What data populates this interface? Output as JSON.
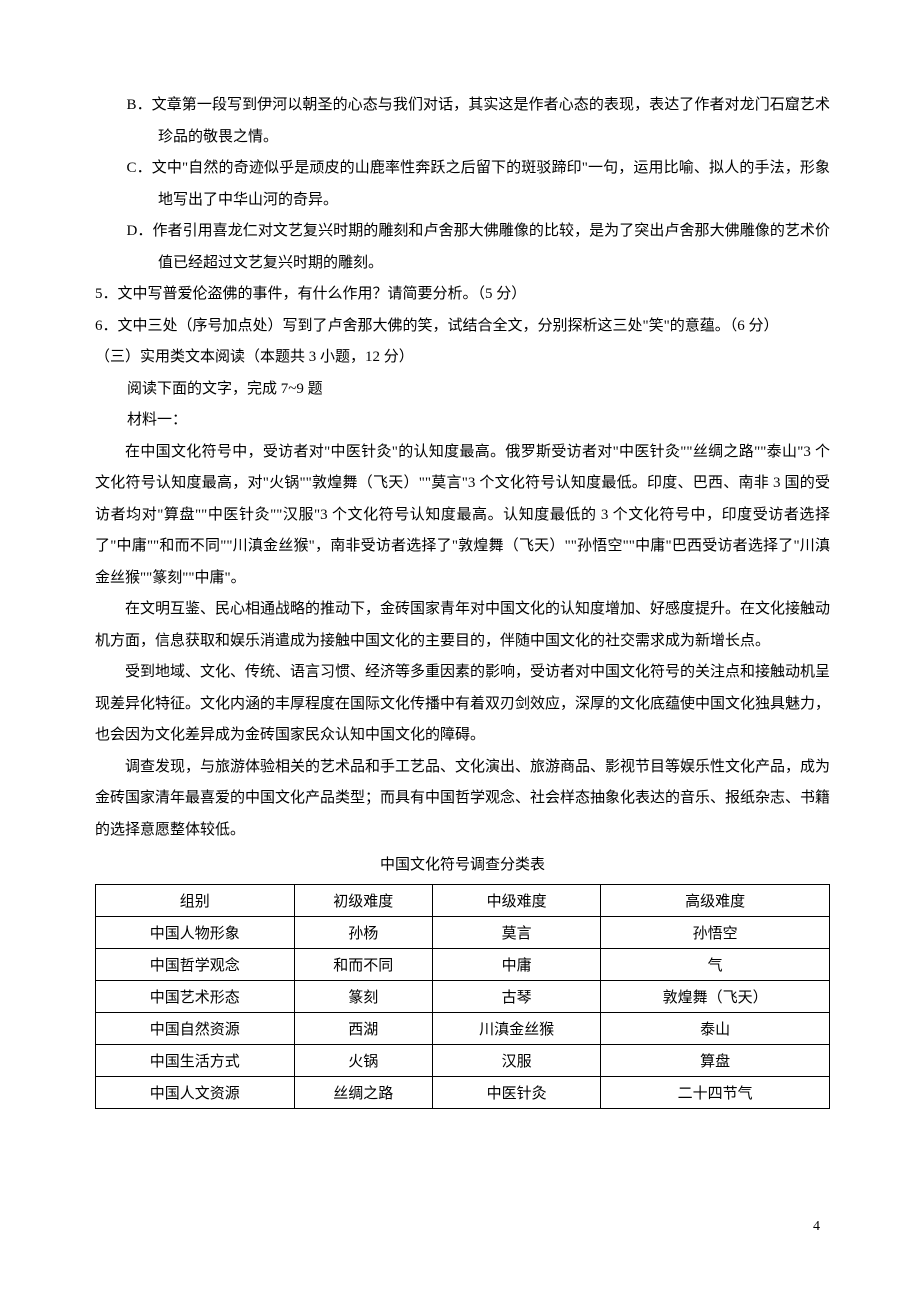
{
  "options": {
    "B": "B．文章第一段写到伊河以朝圣的心态与我们对话，其实这是作者心态的表现，表达了作者对龙门石窟艺术珍品的敬畏之情。",
    "C": "C．文中\"自然的奇迹似乎是顽皮的山鹿率性奔跃之后留下的斑驳蹄印\"一句，运用比喻、拟人的手法，形象地写出了中华山河的奇异。",
    "D": "D．作者引用喜龙仁对文艺复兴时期的雕刻和卢舍那大佛雕像的比较，是为了突出卢舍那大佛雕像的艺术价值已经超过文艺复兴时期的雕刻。"
  },
  "q5": "5．文中写普爱伦盗佛的事件，有什么作用？请简要分析。（5 分）",
  "q6": "6．文中三处（序号加点处）写到了卢舍那大佛的笑，试结合全文，分别探析这三处\"笑\"的意蕴。（6 分）",
  "section3": "（三）实用类文本阅读（本题共 3 小题，12 分）",
  "readPrompt": "阅读下面的文字，完成 7~9 题",
  "mat1Label": "材料一：",
  "p1": "在中国文化符号中，受访者对\"中医针灸\"的认知度最高。俄罗斯受访者对\"中医针灸\"\"丝绸之路\"\"泰山\"3 个文化符号认知度最高，对\"火锅\"\"敦煌舞（飞天）\"\"莫言\"3 个文化符号认知度最低。印度、巴西、南非 3 国的受访者均对\"算盘\"\"中医针灸\"\"汉服\"3 个文化符号认知度最高。认知度最低的 3 个文化符号中，印度受访者选择了\"中庸\"\"和而不同\"\"川滇金丝猴\"，南非受访者选择了\"敦煌舞（飞天）\"\"孙悟空\"\"中庸\"巴西受访者选择了\"川滇金丝猴\"\"篆刻\"\"中庸\"。",
  "p2": "在文明互鉴、民心相通战略的推动下，金砖国家青年对中国文化的认知度增加、好感度提升。在文化接触动机方面，信息获取和娱乐消遣成为接触中国文化的主要目的，伴随中国文化的社交需求成为新增长点。",
  "p3": "受到地域、文化、传统、语言习惯、经济等多重因素的影响，受访者对中国文化符号的关注点和接触动机呈现差异化特征。文化内涵的丰厚程度在国际文化传播中有着双刃剑效应，深厚的文化底蕴使中国文化独具魅力，也会因为文化差异成为金砖国家民众认知中国文化的障碍。",
  "p4": "调查发现，与旅游体验相关的艺术品和手工艺品、文化演出、旅游商品、影视节目等娱乐性文化产品，成为金砖国家清年最喜爱的中国文化产品类型；而具有中国哲学观念、社会样态抽象化表达的音乐、报纸杂志、书籍的选择意愿整体较低。",
  "tableTitle": "中国文化符号调查分类表",
  "table": {
    "headers": [
      "组别",
      "初级难度",
      "中级难度",
      "高级难度"
    ],
    "rows": [
      [
        "中国人物形象",
        "孙杨",
        "莫言",
        "孙悟空"
      ],
      [
        "中国哲学观念",
        "和而不同",
        "中庸",
        "气"
      ],
      [
        "中国艺术形态",
        "篆刻",
        "古琴",
        "敦煌舞（飞天）"
      ],
      [
        "中国自然资源",
        "西湖",
        "川滇金丝猴",
        "泰山"
      ],
      [
        "中国生活方式",
        "火锅",
        "汉服",
        "算盘"
      ],
      [
        "中国人文资源",
        "丝绸之路",
        "中医针灸",
        "二十四节气"
      ]
    ]
  },
  "pageNum": "4"
}
